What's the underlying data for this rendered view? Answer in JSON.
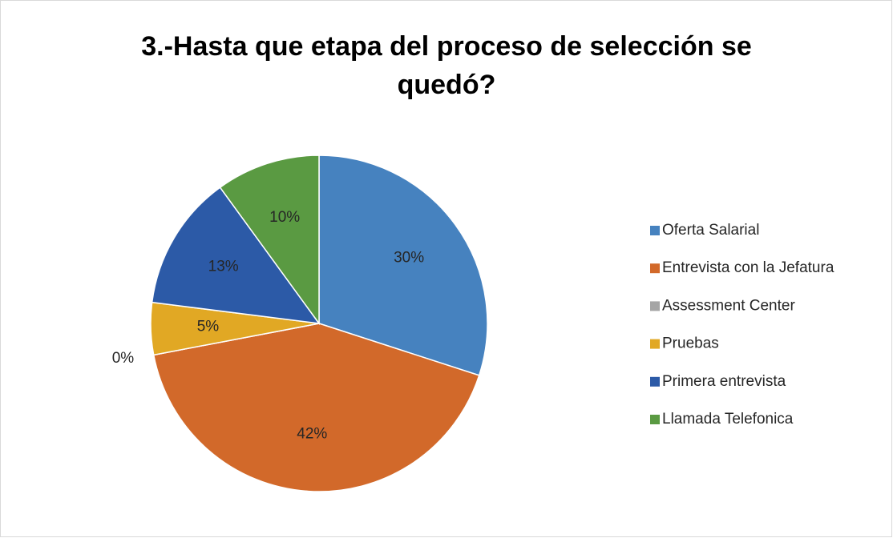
{
  "chart_data": {
    "type": "pie",
    "title": "3.-Hasta que etapa del proceso de selección se quedó?",
    "categories": [
      "Oferta Salarial",
      "Entrevista con la Jefatura",
      "Assessment Center",
      "Pruebas",
      "Primera entrevista",
      "Llamada Telefonica"
    ],
    "values": [
      30,
      42,
      0,
      5,
      13,
      10
    ],
    "value_labels": [
      "30%",
      "42%",
      "0%",
      "5%",
      "13%",
      "10%"
    ],
    "colors": [
      "#4682bf",
      "#d2692a",
      "#a5a5a5",
      "#e1a824",
      "#2c5aa7",
      "#5a9a42"
    ],
    "legend": "right"
  }
}
